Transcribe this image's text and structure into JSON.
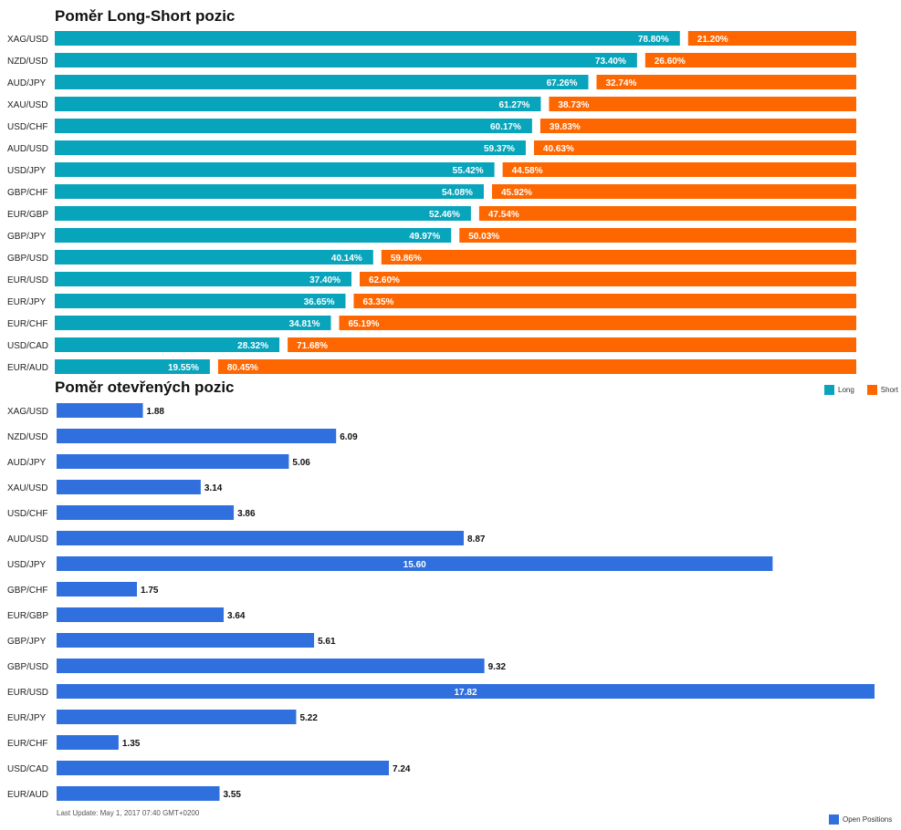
{
  "chart_data": [
    {
      "type": "bar",
      "title": "Poměr Long-Short pozic",
      "categories": [
        "XAG/USD",
        "NZD/USD",
        "AUD/JPY",
        "XAU/USD",
        "USD/CHF",
        "AUD/USD",
        "USD/JPY",
        "GBP/CHF",
        "EUR/GBP",
        "GBP/JPY",
        "GBP/USD",
        "EUR/USD",
        "EUR/JPY",
        "EUR/CHF",
        "USD/CAD",
        "EUR/AUD"
      ],
      "series": [
        {
          "name": "Long",
          "color": "#08a4bb",
          "values": [
            78.8,
            73.4,
            67.26,
            61.27,
            60.17,
            59.37,
            55.42,
            54.08,
            52.46,
            49.97,
            40.14,
            37.4,
            36.65,
            34.81,
            28.32,
            19.55
          ],
          "labels": [
            "78.80%",
            "73.40%",
            "67.26%",
            "61.27%",
            "60.17%",
            "59.37%",
            "55.42%",
            "54.08%",
            "52.46%",
            "49.97%",
            "40.14%",
            "37.40%",
            "36.65%",
            "34.81%",
            "28.32%",
            "19.55%"
          ]
        },
        {
          "name": "Short",
          "color": "#fe6600",
          "values": [
            21.2,
            26.6,
            32.74,
            38.73,
            39.83,
            40.63,
            44.58,
            45.92,
            47.54,
            50.03,
            59.86,
            62.6,
            63.35,
            65.19,
            71.68,
            80.45
          ],
          "labels": [
            "21.20%",
            "26.60%",
            "32.74%",
            "38.73%",
            "39.83%",
            "40.63%",
            "44.58%",
            "45.92%",
            "47.54%",
            "50.03%",
            "59.86%",
            "62.60%",
            "63.35%",
            "65.19%",
            "71.68%",
            "80.45%"
          ]
        }
      ],
      "legend_position": "bottom-right"
    },
    {
      "type": "bar",
      "title": "Poměr otevřených pozic",
      "categories": [
        "XAG/USD",
        "NZD/USD",
        "AUD/JPY",
        "XAU/USD",
        "USD/CHF",
        "AUD/USD",
        "USD/JPY",
        "GBP/CHF",
        "EUR/GBP",
        "GBP/JPY",
        "GBP/USD",
        "EUR/USD",
        "EUR/JPY",
        "EUR/CHF",
        "USD/CAD",
        "EUR/AUD"
      ],
      "series": [
        {
          "name": "Open Positions",
          "color": "#2f6fde",
          "values": [
            1.88,
            6.09,
            5.06,
            3.14,
            3.86,
            8.87,
            15.6,
            1.75,
            3.64,
            5.61,
            9.32,
            17.82,
            5.22,
            1.35,
            7.24,
            3.55
          ],
          "labels": [
            "1.88",
            "6.09",
            "5.06",
            "3.14",
            "3.86",
            "8.87",
            "15.60",
            "1.75",
            "3.64",
            "5.61",
            "9.32",
            "17.82",
            "5.22",
            "1.35",
            "7.24",
            "3.55"
          ]
        }
      ],
      "xlim": [
        0,
        17.82
      ],
      "legend_position": "bottom-right"
    }
  ],
  "footnote": "Last Update: May 1, 2017 07:40 GMT+0200"
}
